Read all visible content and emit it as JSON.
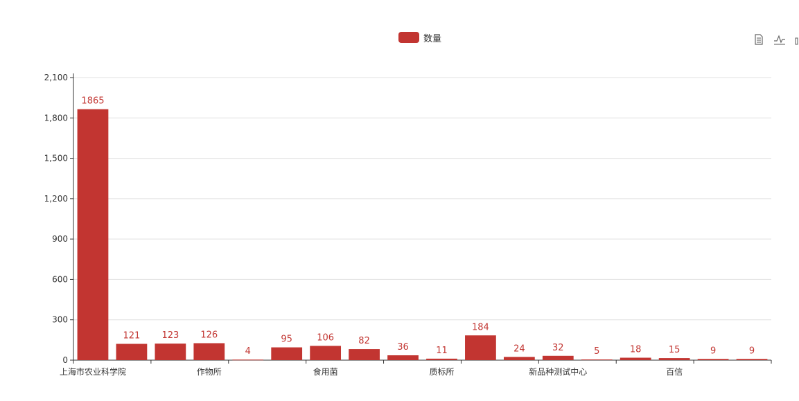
{
  "legend": {
    "label": "数量",
    "color": "#c23531"
  },
  "toolbox": {
    "icons": [
      "data-view-icon",
      "line-chart-icon",
      "bar-chart-icon"
    ]
  },
  "chart_data": {
    "type": "bar",
    "title": "",
    "xlabel": "",
    "ylabel": "",
    "ylim": [
      0,
      2100
    ],
    "yticks": [
      0,
      300,
      600,
      900,
      1200,
      1500,
      1800,
      2100
    ],
    "ytick_labels": [
      "0",
      "300",
      "600",
      "900",
      "1,200",
      "1,500",
      "1,800",
      "2,100"
    ],
    "x_labels_shown": [
      "上海市农业科学院",
      "作物所",
      "食用菌",
      "质标所",
      "新品种测试中心",
      "百信"
    ],
    "grid": true,
    "legend_position": "top-center",
    "bar_color": "#c23531",
    "series": [
      {
        "name": "数量",
        "values": [
          1865,
          121,
          123,
          126,
          4,
          95,
          106,
          82,
          36,
          11,
          184,
          24,
          32,
          5,
          18,
          15,
          9,
          9
        ]
      }
    ]
  }
}
